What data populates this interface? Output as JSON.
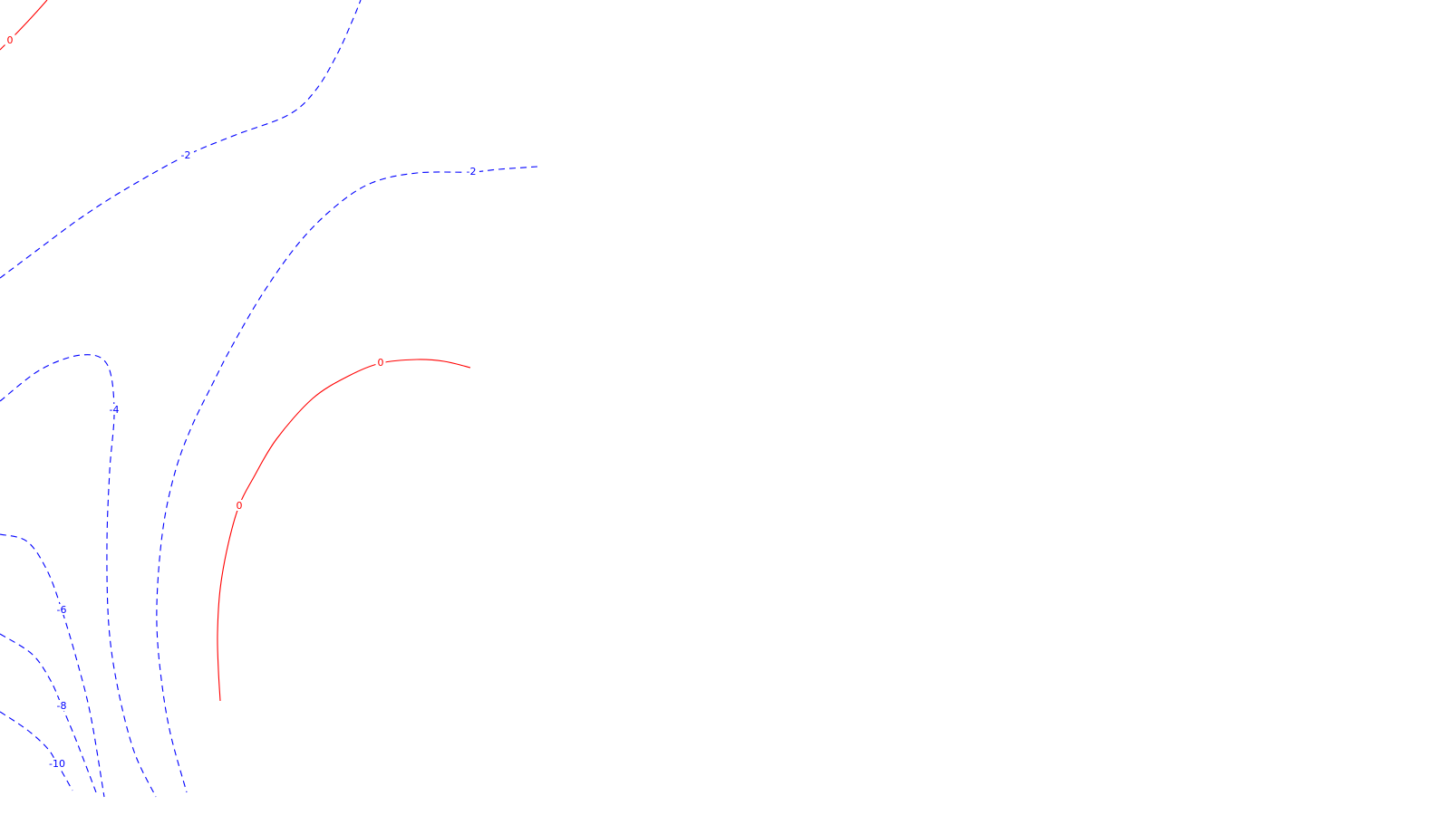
{
  "chart_data": {
    "type": "contour",
    "title": "",
    "xlabel": "",
    "ylabel": "",
    "grid": false,
    "legend": "none",
    "colors": {
      "positive": "#ff0000",
      "negative": "#0000ff",
      "background": "#ffffff"
    },
    "contours": [
      {
        "id": "zero-top-left",
        "level": 0,
        "label": "0",
        "style": "solid",
        "color": "#ff0000",
        "label_at": [
          11,
          44
        ],
        "points": [
          [
            0,
            55
          ],
          [
            18,
            37
          ],
          [
            35,
            19
          ],
          [
            52,
            0
          ]
        ]
      },
      {
        "id": "minus2-upper",
        "level": -2,
        "label": "-2",
        "style": "dashed",
        "color": "#0000ff",
        "label_at": [
          205,
          171
        ],
        "points": [
          [
            0,
            307
          ],
          [
            40,
            277
          ],
          [
            90,
            240
          ],
          [
            140,
            208
          ],
          [
            205,
            172
          ],
          [
            260,
            149
          ],
          [
            318,
            127
          ],
          [
            348,
            100
          ],
          [
            372,
            60
          ],
          [
            390,
            20
          ],
          [
            398,
            0
          ]
        ]
      },
      {
        "id": "minus2-lower",
        "level": -2,
        "label": "-2",
        "style": "dashed",
        "color": "#0000ff",
        "label_at": [
          520,
          189
        ],
        "points": [
          [
            593,
            184
          ],
          [
            550,
            187
          ],
          [
            520,
            190
          ],
          [
            460,
            191
          ],
          [
            410,
            202
          ],
          [
            370,
            228
          ],
          [
            330,
            268
          ],
          [
            290,
            324
          ],
          [
            255,
            384
          ],
          [
            234,
            425
          ],
          [
            212,
            470
          ],
          [
            195,
            515
          ],
          [
            182,
            570
          ],
          [
            175,
            630
          ],
          [
            173,
            690
          ],
          [
            178,
            750
          ],
          [
            188,
            810
          ],
          [
            206,
            875
          ]
        ]
      },
      {
        "id": "minus4",
        "level": -4,
        "label": "-4",
        "style": "dashed",
        "color": "#0000ff",
        "label_at": [
          126,
          452
        ],
        "points": [
          [
            0,
            443
          ],
          [
            45,
            408
          ],
          [
            90,
            392
          ],
          [
            118,
            402
          ],
          [
            126,
            452
          ],
          [
            121,
            520
          ],
          [
            118,
            600
          ],
          [
            120,
            690
          ],
          [
            130,
            760
          ],
          [
            148,
            830
          ],
          [
            172,
            880
          ]
        ]
      },
      {
        "id": "minus6",
        "level": -6,
        "label": "-6",
        "style": "dashed",
        "color": "#0000ff",
        "label_at": [
          68,
          673
        ],
        "points": [
          [
            0,
            590
          ],
          [
            30,
            598
          ],
          [
            52,
            630
          ],
          [
            68,
            673
          ],
          [
            85,
            730
          ],
          [
            100,
            790
          ],
          [
            115,
            880
          ]
        ]
      },
      {
        "id": "minus8",
        "level": -8,
        "label": "-8",
        "style": "dashed",
        "color": "#0000ff",
        "label_at": [
          68,
          779
        ],
        "points": [
          [
            0,
            700
          ],
          [
            35,
            722
          ],
          [
            55,
            750
          ],
          [
            68,
            779
          ],
          [
            85,
            820
          ],
          [
            106,
            875
          ]
        ]
      },
      {
        "id": "minus10",
        "level": -10,
        "label": "-10",
        "style": "dashed",
        "color": "#0000ff",
        "label_at": [
          63,
          843
        ],
        "points": [
          [
            0,
            786
          ],
          [
            30,
            806
          ],
          [
            52,
            826
          ],
          [
            63,
            843
          ],
          [
            80,
            873
          ]
        ]
      },
      {
        "id": "zero-arc",
        "level": 0,
        "label": "0",
        "style": "solid",
        "color": "#ff0000",
        "label_at": [
          [
            420,
            400
          ],
          [
            264,
            558
          ]
        ],
        "points": [
          [
            519,
            406
          ],
          [
            490,
            399
          ],
          [
            460,
            397
          ],
          [
            420,
            401
          ],
          [
            385,
            415
          ],
          [
            345,
            440
          ],
          [
            305,
            485
          ],
          [
            280,
            527
          ],
          [
            264,
            558
          ],
          [
            252,
            600
          ],
          [
            243,
            650
          ],
          [
            240,
            700
          ],
          [
            241,
            740
          ],
          [
            243,
            774
          ]
        ]
      }
    ]
  }
}
